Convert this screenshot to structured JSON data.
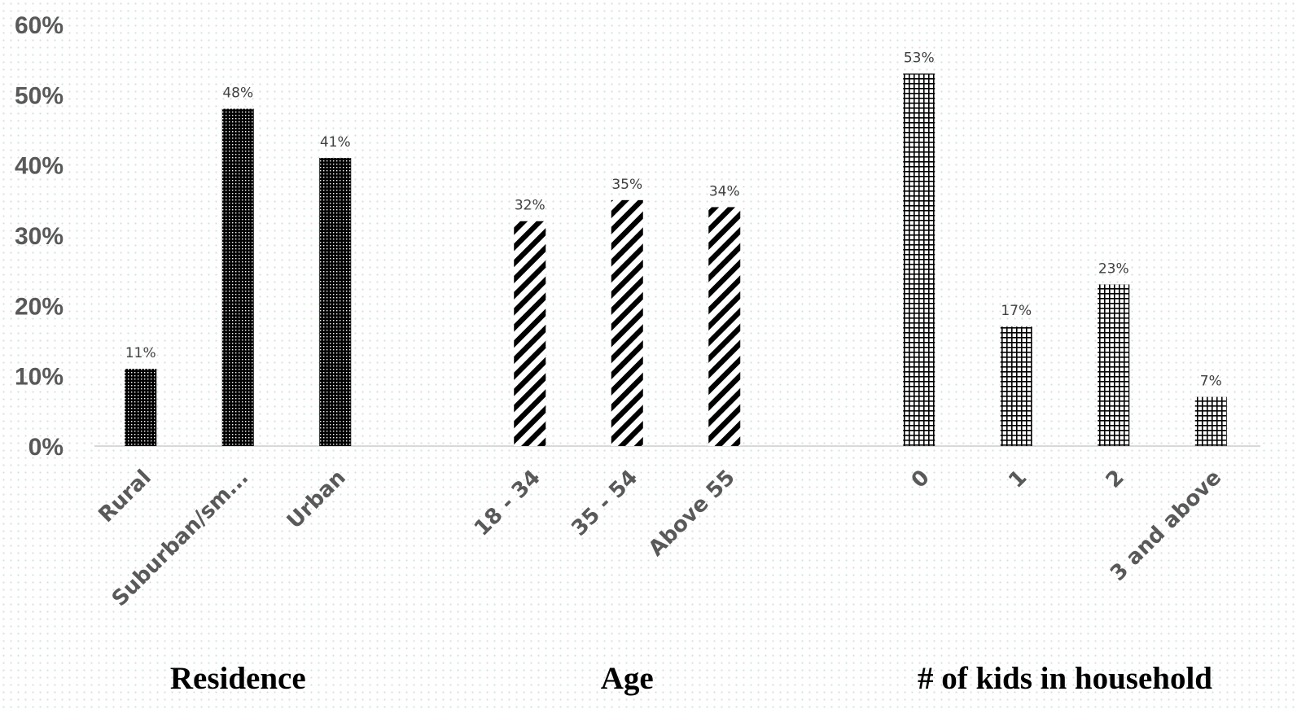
{
  "chart_data": {
    "type": "bar",
    "title": "",
    "xlabel": "",
    "ylabel": "",
    "ylim": [
      0,
      60
    ],
    "yticks": [
      "0%",
      "10%",
      "20%",
      "30%",
      "40%",
      "50%",
      "60%"
    ],
    "value_format": "percent",
    "grid": false,
    "legend": "none",
    "groups": [
      {
        "name": "Residence",
        "pattern": "dots",
        "categories": [
          "Rural",
          "Suburban/sm...",
          "Urban"
        ],
        "values": [
          11,
          48,
          41
        ],
        "labels": [
          "11%",
          "48%",
          "41%"
        ]
      },
      {
        "name": "Age",
        "pattern": "diagonal-stripes",
        "categories": [
          "18 - 34",
          "35 - 54",
          "Above 55"
        ],
        "values": [
          32,
          35,
          34
        ],
        "labels": [
          "32%",
          "35%",
          "34%"
        ]
      },
      {
        "name": "# of kids in household",
        "pattern": "grid",
        "categories": [
          "0",
          "1",
          "2",
          "3 and above"
        ],
        "values": [
          53,
          17,
          23,
          7
        ],
        "labels": [
          "53%",
          "17%",
          "23%",
          "7%"
        ]
      }
    ]
  },
  "colors": {
    "bar_ink": "#000000",
    "axis_line": "#d9d9d9",
    "tick_text": "#595959",
    "label_text": "#404040",
    "group_title": "#000000"
  }
}
